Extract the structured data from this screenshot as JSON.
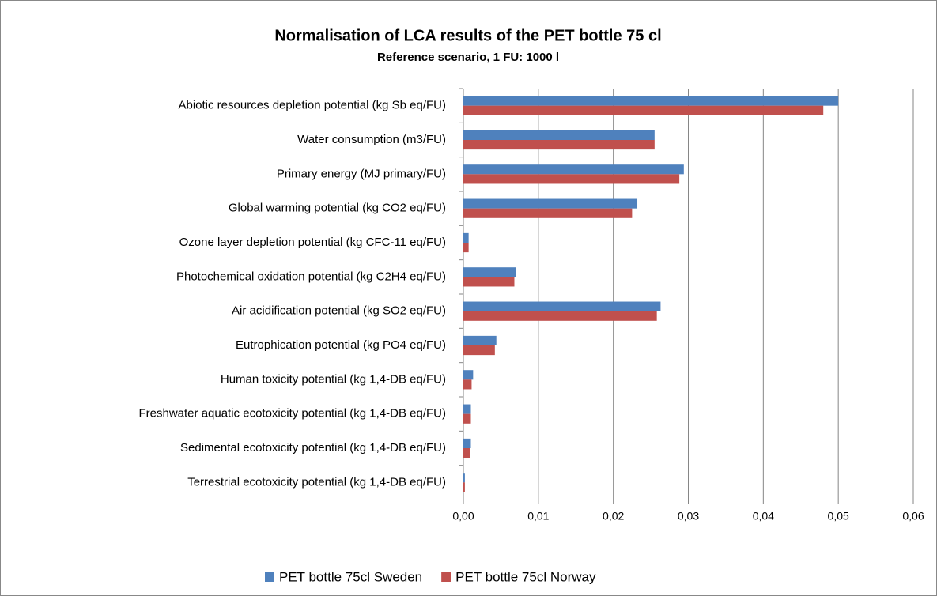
{
  "chart_data": {
    "type": "bar",
    "orientation": "horizontal",
    "title": "Normalisation of LCA results of the PET bottle 75 cl",
    "subtitle": "Reference scenario, 1 FU: 1000 l",
    "categories": [
      "Abiotic resources depletion potential (kg Sb eq/FU)",
      "Water consumption (m3/FU)",
      "Primary energy (MJ primary/FU)",
      "Global warming potential (kg CO2 eq/FU)",
      "Ozone layer depletion potential (kg CFC-11 eq/FU)",
      "Photochemical oxidation potential (kg C2H4 eq/FU)",
      "Air acidification  potential (kg SO2 eq/FU)",
      "Eutrophication potential (kg PO4 eq/FU)",
      "Human toxicity potential (kg 1,4-DB eq/FU)",
      "Freshwater aquatic ecotoxicity potential (kg 1,4-DB eq/FU)",
      "Sedimental ecotoxicity potential (kg 1,4-DB eq/FU)",
      "Terrestrial ecotoxicity potential (kg 1,4-DB eq/FU)"
    ],
    "series": [
      {
        "name": "PET bottle 75cl Sweden",
        "color": "#4f81bd",
        "values": [
          0.05,
          0.0255,
          0.0294,
          0.0232,
          0.0007,
          0.007,
          0.0263,
          0.0044,
          0.0013,
          0.001,
          0.001,
          0.0002
        ]
      },
      {
        "name": "PET bottle 75cl Norway",
        "color": "#c0504d",
        "values": [
          0.048,
          0.0255,
          0.0288,
          0.0225,
          0.0007,
          0.0068,
          0.0258,
          0.0042,
          0.0011,
          0.001,
          0.0009,
          0.0002
        ]
      }
    ],
    "xlim": [
      0,
      0.06
    ],
    "xticks": [
      {
        "value": 0,
        "label": "0,00"
      },
      {
        "value": 0.01,
        "label": "0,01"
      },
      {
        "value": 0.02,
        "label": "0,02"
      },
      {
        "value": 0.03,
        "label": "0,03"
      },
      {
        "value": 0.04,
        "label": "0,04"
      },
      {
        "value": 0.05,
        "label": "0,05"
      },
      {
        "value": 0.06,
        "label": "0,06"
      }
    ],
    "grid": true,
    "legend": "bottom"
  }
}
